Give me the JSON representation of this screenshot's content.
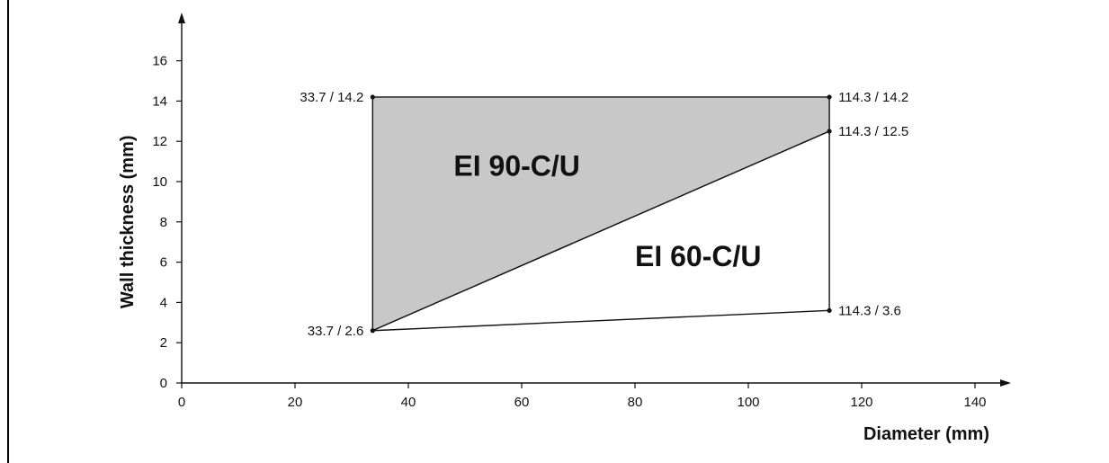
{
  "chart_data": {
    "type": "area",
    "xlabel": "Diameter (mm)",
    "ylabel": "Wall thickness (mm)",
    "xlim": [
      0,
      140
    ],
    "ylim": [
      0,
      16
    ],
    "xticks": [
      0,
      20,
      40,
      60,
      80,
      100,
      120,
      140
    ],
    "yticks": [
      0,
      2,
      4,
      6,
      8,
      10,
      12,
      14,
      16
    ],
    "grid": false,
    "colors": {
      "ei90_fill": "#c8c8c8",
      "ei60_fill": "#ffffff",
      "line": "#111111"
    },
    "points": [
      {
        "x": 33.7,
        "y": 14.2,
        "label": "33.7 / 14.2"
      },
      {
        "x": 114.3,
        "y": 14.2,
        "label": "114.3 / 14.2"
      },
      {
        "x": 114.3,
        "y": 12.5,
        "label": "114.3 / 12.5"
      },
      {
        "x": 33.7,
        "y": 2.6,
        "label": "33.7 / 2.6"
      },
      {
        "x": 114.3,
        "y": 3.6,
        "label": "114.3 / 3.6"
      }
    ],
    "regions": [
      {
        "name": "EI 90-C/U",
        "polygon": [
          [
            33.7,
            14.2
          ],
          [
            114.3,
            14.2
          ],
          [
            114.3,
            12.5
          ],
          [
            33.7,
            2.6
          ]
        ]
      },
      {
        "name": "EI 60-C/U",
        "polygon": [
          [
            33.7,
            2.6
          ],
          [
            114.3,
            12.5
          ],
          [
            114.3,
            3.6
          ]
        ]
      }
    ]
  }
}
